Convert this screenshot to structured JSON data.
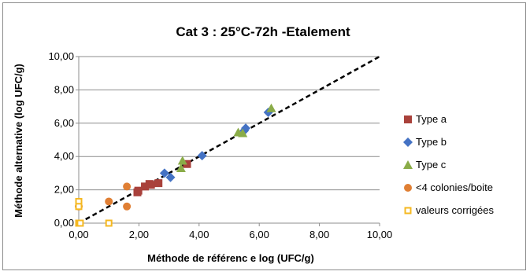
{
  "chart_data": {
    "type": "scatter",
    "title": "Cat 3 : 25°C-72h -Etalement",
    "xlabel": "Méthode de référenc e log (UFC/g)",
    "ylabel": "Méthode alternative (log UFC/g)",
    "xlim": [
      0,
      10
    ],
    "ylim": [
      0,
      10
    ],
    "xticks": [
      "0,00",
      "2,00",
      "4,00",
      "6,00",
      "8,00",
      "10,00"
    ],
    "yticks": [
      "0,00",
      "2,00",
      "4,00",
      "6,00",
      "8,00",
      "10,00"
    ],
    "grid": "horizontal",
    "legend_position": "right",
    "reference_line": {
      "style": "dashed",
      "color": "#000000",
      "from": [
        0,
        0
      ],
      "to": [
        10,
        10
      ]
    },
    "series": [
      {
        "name": "Type a",
        "marker": "square",
        "color": "#a9413b",
        "points": [
          [
            1.95,
            1.85
          ],
          [
            1.98,
            1.95
          ],
          [
            2.2,
            2.2
          ],
          [
            2.35,
            2.35
          ],
          [
            2.4,
            2.3
          ],
          [
            2.65,
            2.4
          ],
          [
            3.6,
            3.55
          ]
        ]
      },
      {
        "name": "Type b",
        "marker": "diamond",
        "color": "#4472c4",
        "points": [
          [
            2.85,
            3.0
          ],
          [
            3.05,
            2.75
          ],
          [
            4.1,
            4.05
          ],
          [
            5.55,
            5.7
          ],
          [
            5.5,
            5.55
          ],
          [
            6.3,
            6.65
          ]
        ]
      },
      {
        "name": "Type c",
        "marker": "triangle",
        "color": "#8aac48",
        "points": [
          [
            3.4,
            3.3
          ],
          [
            3.45,
            3.75
          ],
          [
            5.3,
            5.45
          ],
          [
            5.45,
            5.4
          ],
          [
            6.4,
            6.9
          ]
        ]
      },
      {
        "name": "<4 colonies/boite",
        "marker": "circle",
        "color": "#e07f34",
        "points": [
          [
            1.0,
            1.3
          ],
          [
            1.6,
            2.2
          ],
          [
            1.6,
            1.0
          ],
          [
            0.0,
            1.0
          ]
        ]
      },
      {
        "name": "valeurs corrigées",
        "marker": "hollow-square",
        "color": "#f5b821",
        "points": [
          [
            0.0,
            1.3
          ],
          [
            0.0,
            1.0
          ],
          [
            0.0,
            0.0
          ],
          [
            1.0,
            0.0
          ],
          [
            0.05,
            0.0
          ]
        ]
      }
    ]
  }
}
